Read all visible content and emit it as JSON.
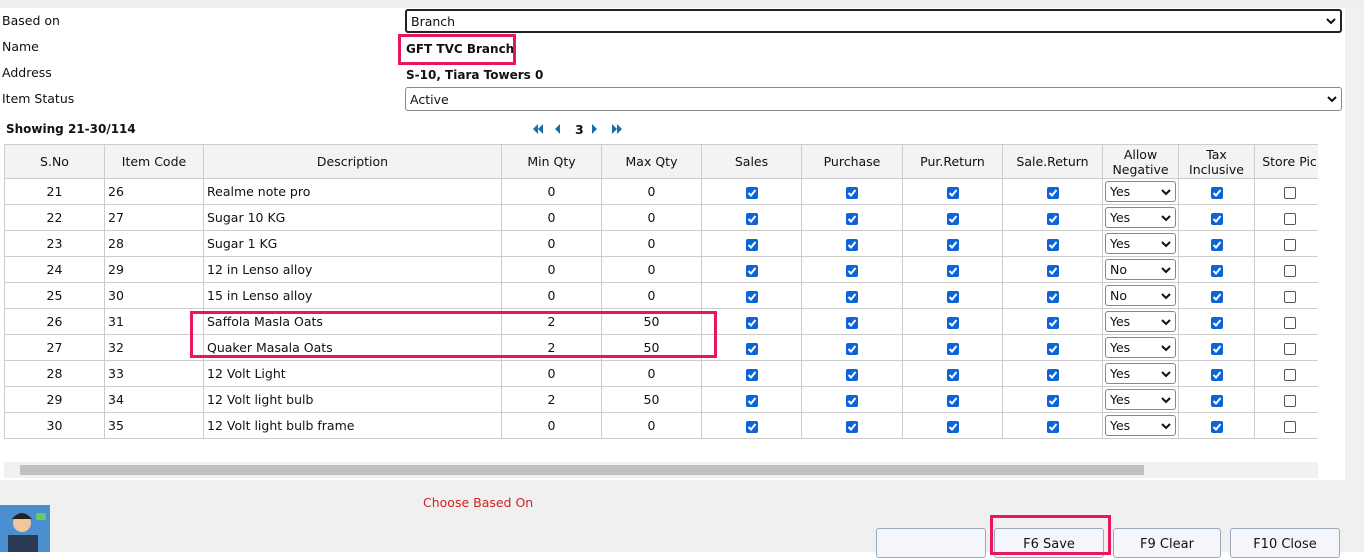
{
  "form": {
    "fields": [
      {
        "label": "Based on",
        "value": "Branch"
      },
      {
        "label": "Name",
        "value": "GFT TVC Branch"
      },
      {
        "label": "Address",
        "value": "S-10, Tiara Towers 0"
      },
      {
        "label": "Item Status",
        "value": "Active"
      }
    ]
  },
  "pager": {
    "showing": "Showing 21-30/114",
    "page": "3"
  },
  "table": {
    "columns": [
      "S.No",
      "Item Code",
      "Description",
      "Min Qty",
      "Max Qty",
      "Sales",
      "Purchase",
      "Pur.Return",
      "Sale.Return",
      "Allow Negative",
      "Tax Inclusive",
      "Store Pic"
    ],
    "rows": [
      [
        21,
        26,
        "Realme note pro",
        0,
        0,
        true,
        true,
        true,
        true,
        "Yes",
        true,
        false
      ],
      [
        22,
        27,
        "Sugar 10 KG",
        0,
        0,
        true,
        true,
        true,
        true,
        "Yes",
        true,
        false
      ],
      [
        23,
        28,
        "Sugar 1 KG",
        0,
        0,
        true,
        true,
        true,
        true,
        "Yes",
        true,
        false
      ],
      [
        24,
        29,
        "12 in Lenso alloy",
        0,
        0,
        true,
        true,
        true,
        true,
        "No",
        true,
        false
      ],
      [
        25,
        30,
        "15 in Lenso alloy",
        0,
        0,
        true,
        true,
        true,
        true,
        "No",
        true,
        false
      ],
      [
        26,
        31,
        "Saffola Masla Oats",
        2,
        50,
        true,
        true,
        true,
        true,
        "Yes",
        true,
        false
      ],
      [
        27,
        32,
        "Quaker Masala Oats",
        2,
        50,
        true,
        true,
        true,
        true,
        "Yes",
        true,
        false
      ],
      [
        28,
        33,
        "12 Volt Light",
        0,
        0,
        true,
        true,
        true,
        true,
        "Yes",
        true,
        false
      ],
      [
        29,
        34,
        "12 Volt light bulb",
        2,
        50,
        true,
        true,
        true,
        true,
        "Yes",
        true,
        false
      ],
      [
        30,
        35,
        "12 Volt light bulb frame",
        0,
        0,
        true,
        true,
        true,
        true,
        "Yes",
        true,
        false
      ]
    ]
  },
  "message": "Choose Based On",
  "buttons": [
    "F6 Save",
    "F9 Clear",
    "F10 Close"
  ]
}
